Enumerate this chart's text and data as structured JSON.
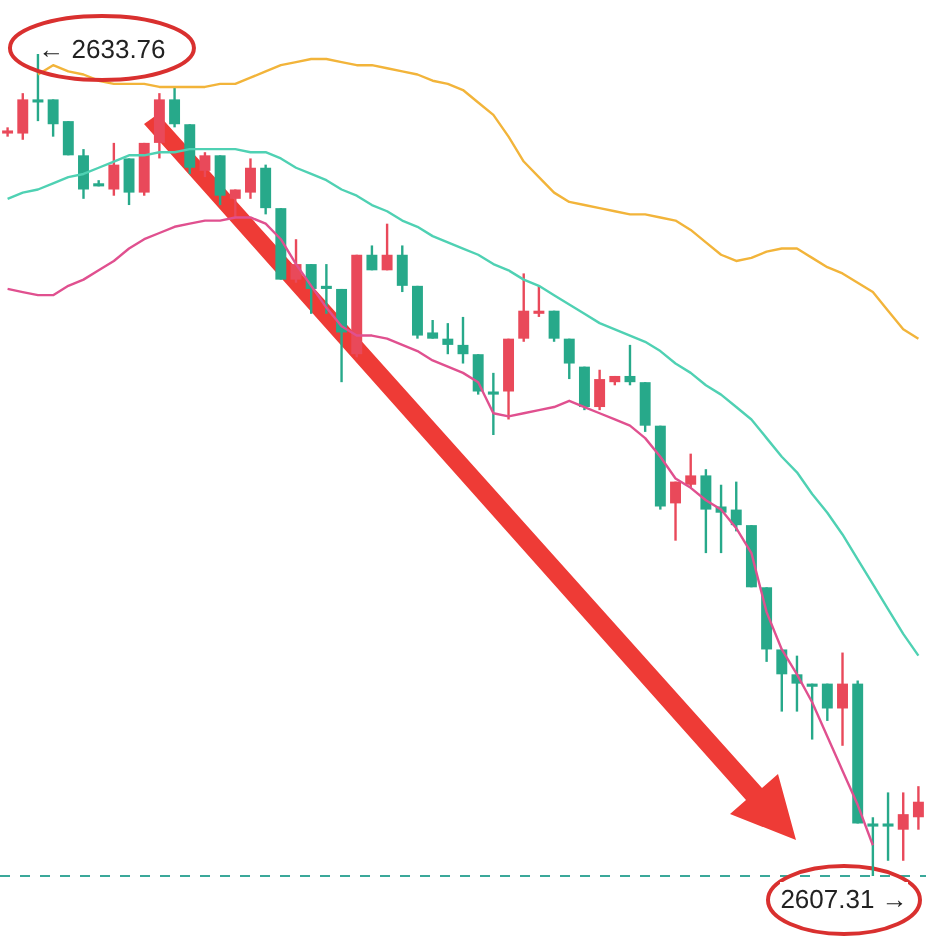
{
  "chart_data": {
    "type": "candlestick",
    "categories": [
      null,
      null,
      null,
      null,
      null,
      null,
      null,
      null,
      null,
      null,
      null,
      null,
      null,
      null,
      null,
      null,
      null,
      null,
      null,
      null,
      null,
      null,
      null,
      null,
      null,
      null,
      null,
      null,
      null,
      null,
      null,
      null,
      null,
      null,
      null,
      null,
      null,
      null,
      null,
      null,
      null,
      null,
      null,
      null,
      null,
      null,
      null,
      null,
      null,
      null,
      null,
      null,
      null,
      null,
      null,
      null,
      null,
      null,
      null,
      null,
      null
    ],
    "ohlc": [
      [
        2631.2,
        2631.4,
        2631.1,
        2631.3
      ],
      [
        2631.2,
        2632.5,
        2631.0,
        2632.3
      ],
      [
        2632.3,
        2633.76,
        2631.6,
        2632.2
      ],
      [
        2632.3,
        2632.3,
        2631.1,
        2631.5
      ],
      [
        2631.6,
        2631.6,
        2630.5,
        2630.5
      ],
      [
        2630.5,
        2630.7,
        2629.1,
        2629.4
      ],
      [
        2629.6,
        2629.7,
        2629.5,
        2629.5
      ],
      [
        2629.4,
        2630.9,
        2629.2,
        2630.2
      ],
      [
        2630.4,
        2630.4,
        2628.9,
        2629.3
      ],
      [
        2629.3,
        2630.9,
        2629.2,
        2630.9
      ],
      [
        2630.9,
        2632.5,
        2630.4,
        2632.3
      ],
      [
        2632.3,
        2632.7,
        2631.4,
        2631.5
      ],
      [
        2631.5,
        2631.5,
        2629.9,
        2630.1
      ],
      [
        2630.0,
        2630.6,
        2629.8,
        2630.5
      ],
      [
        2630.5,
        2630.5,
        2628.9,
        2629.2
      ],
      [
        2629.1,
        2629.4,
        2628.5,
        2629.4
      ],
      [
        2629.3,
        2630.4,
        2629.1,
        2630.1
      ],
      [
        2630.1,
        2630.2,
        2628.6,
        2628.8
      ],
      [
        2628.8,
        2628.8,
        2626.5,
        2626.5
      ],
      [
        2626.5,
        2627.8,
        2626.4,
        2627.0
      ],
      [
        2627.0,
        2627.0,
        2625.4,
        2626.2
      ],
      [
        2626.3,
        2627.0,
        2625.4,
        2626.2
      ],
      [
        2626.2,
        2626.2,
        2623.2,
        2624.8
      ],
      [
        2624.1,
        2627.3,
        2624.0,
        2627.3
      ],
      [
        2627.3,
        2627.6,
        2626.8,
        2626.8
      ],
      [
        2626.8,
        2628.3,
        2626.8,
        2627.3
      ],
      [
        2627.3,
        2627.6,
        2626.1,
        2626.3
      ],
      [
        2626.3,
        2626.3,
        2624.6,
        2624.7
      ],
      [
        2624.8,
        2625.2,
        2624.6,
        2624.6
      ],
      [
        2624.6,
        2625.1,
        2624.1,
        2624.4
      ],
      [
        2624.4,
        2625.3,
        2623.8,
        2624.1
      ],
      [
        2624.1,
        2624.1,
        2622.8,
        2622.9
      ],
      [
        2622.9,
        2623.5,
        2621.5,
        2622.8
      ],
      [
        2622.9,
        2624.6,
        2622.0,
        2624.6
      ],
      [
        2624.6,
        2626.7,
        2624.5,
        2625.5
      ],
      [
        2625.4,
        2626.3,
        2625.3,
        2625.5
      ],
      [
        2625.5,
        2625.5,
        2624.5,
        2624.6
      ],
      [
        2624.6,
        2624.6,
        2623.3,
        2623.8
      ],
      [
        2623.7,
        2623.7,
        2622.3,
        2622.4
      ],
      [
        2622.4,
        2623.6,
        2622.3,
        2623.3
      ],
      [
        2623.2,
        2623.4,
        2623.1,
        2623.4
      ],
      [
        2623.4,
        2624.4,
        2623.1,
        2623.2
      ],
      [
        2623.2,
        2623.2,
        2621.6,
        2621.8
      ],
      [
        2621.8,
        2621.8,
        2619.1,
        2619.2
      ],
      [
        2619.3,
        2620.0,
        2618.1,
        2620.0
      ],
      [
        2619.9,
        2620.9,
        2619.8,
        2620.2
      ],
      [
        2620.2,
        2620.4,
        2617.7,
        2619.1
      ],
      [
        2619.2,
        2619.9,
        2617.7,
        2619.0
      ],
      [
        2619.1,
        2620.0,
        2618.4,
        2618.6
      ],
      [
        2618.6,
        2618.6,
        2616.6,
        2616.6
      ],
      [
        2616.6,
        2616.6,
        2614.2,
        2614.6
      ],
      [
        2614.6,
        2614.6,
        2612.6,
        2613.8
      ],
      [
        2613.8,
        2614.4,
        2612.6,
        2613.5
      ],
      [
        2613.5,
        2613.5,
        2611.7,
        2613.4
      ],
      [
        2613.5,
        2613.5,
        2612.3,
        2612.7
      ],
      [
        2612.7,
        2614.5,
        2611.5,
        2613.5
      ],
      [
        2613.5,
        2613.6,
        2609.0,
        2609.0
      ],
      [
        2609.0,
        2609.2,
        2607.31,
        2608.9
      ],
      [
        2609.0,
        2610.0,
        2607.8,
        2608.9
      ],
      [
        2608.8,
        2610.0,
        2607.8,
        2609.3
      ],
      [
        2609.2,
        2610.2,
        2608.8,
        2609.7
      ]
    ],
    "colors": [
      "#e9495a",
      "#e9495a",
      "#27a98a",
      "#27a98a",
      "#27a98a",
      "#27a98a",
      "#27a98a",
      "#e9495a",
      "#27a98a",
      "#e9495a",
      "#e9495a",
      "#27a98a",
      "#27a98a",
      "#e9495a",
      "#27a98a",
      "#e9495a",
      "#e9495a",
      "#27a98a",
      "#27a98a",
      "#e9495a",
      "#27a98a",
      "#27a98a",
      "#27a98a",
      "#e9495a",
      "#27a98a",
      "#e9495a",
      "#27a98a",
      "#27a98a",
      "#27a98a",
      "#27a98a",
      "#27a98a",
      "#27a98a",
      "#27a98a",
      "#e9495a",
      "#e9495a",
      "#e9495a",
      "#27a98a",
      "#27a98a",
      "#27a98a",
      "#e9495a",
      "#e9495a",
      "#27a98a",
      "#27a98a",
      "#27a98a",
      "#e9495a",
      "#e9495a",
      "#27a98a",
      "#27a98a",
      "#27a98a",
      "#27a98a",
      "#27a98a",
      "#27a98a",
      "#27a98a",
      "#27a98a",
      "#27a98a",
      "#e9495a",
      "#27a98a",
      "#27a98a",
      "#27a98a",
      "#e9495a",
      "#e9495a"
    ],
    "series": [
      {
        "type": "line",
        "color": "#f2b43a",
        "values": [
          null,
          null,
          2633.1,
          2633.4,
          2633.2,
          2633.1,
          2632.9,
          2632.8,
          2632.8,
          2632.8,
          2632.7,
          2632.7,
          2632.7,
          2632.7,
          2632.8,
          2632.8,
          2633.0,
          2633.2,
          2633.4,
          2633.5,
          2633.6,
          2633.6,
          2633.5,
          2633.4,
          2633.4,
          2633.3,
          2633.2,
          2633.1,
          2632.9,
          2632.8,
          2632.6,
          2632.2,
          2631.8,
          2631.1,
          2630.3,
          2629.8,
          2629.3,
          2629.0,
          2628.9,
          2628.8,
          2628.7,
          2628.6,
          2628.6,
          2628.5,
          2628.4,
          2628.1,
          2627.7,
          2627.3,
          2627.1,
          2627.2,
          2627.4,
          2627.5,
          2627.5,
          2627.2,
          2626.9,
          2626.7,
          2626.4,
          2626.1,
          2625.5,
          2624.9,
          2624.6
        ]
      },
      {
        "type": "line",
        "color": "#4fd1b3",
        "values": [
          2629.1,
          2629.3,
          2629.4,
          2629.6,
          2629.8,
          2629.9,
          2630.1,
          2630.3,
          2630.5,
          2630.5,
          2630.6,
          2630.6,
          2630.7,
          2630.7,
          2630.7,
          2630.7,
          2630.6,
          2630.6,
          2630.4,
          2630.1,
          2629.9,
          2629.7,
          2629.4,
          2629.2,
          2628.9,
          2628.7,
          2628.4,
          2628.2,
          2627.9,
          2627.7,
          2627.5,
          2627.3,
          2627.0,
          2626.8,
          2626.5,
          2626.3,
          2626.0,
          2625.7,
          2625.4,
          2625.1,
          2624.9,
          2624.7,
          2624.5,
          2624.2,
          2623.8,
          2623.5,
          2623.1,
          2622.8,
          2622.4,
          2622.0,
          2621.4,
          2620.8,
          2620.3,
          2619.6,
          2619.0,
          2618.3,
          2617.5,
          2616.7,
          2615.9,
          2615.1,
          2614.4
        ]
      },
      {
        "type": "line",
        "color": "#e0508f",
        "values": [
          2626.2,
          2626.1,
          2626.0,
          2626.0,
          2626.3,
          2626.5,
          2626.8,
          2627.1,
          2627.5,
          2627.8,
          2628.0,
          2628.2,
          2628.3,
          2628.4,
          2628.4,
          2628.5,
          2628.5,
          2628.3,
          2627.8,
          2627.0,
          2626.3,
          2625.6,
          2625.0,
          2624.7,
          2624.7,
          2624.6,
          2624.4,
          2624.2,
          2623.9,
          2623.7,
          2623.5,
          2623.2,
          2622.2,
          2622.1,
          2622.2,
          2622.3,
          2622.4,
          2622.6,
          2622.4,
          2622.2,
          2622.0,
          2621.8,
          2621.4,
          2620.8,
          2620.1,
          2619.8,
          2619.4,
          2619.1,
          2618.5,
          2617.7,
          2615.8,
          2614.6,
          2613.8,
          2612.9,
          2611.8,
          2610.7,
          2609.6,
          2608.3,
          null,
          null,
          null
        ]
      }
    ],
    "annotations": [
      "← 2633.76"
    ],
    "ref_lines": [
      {
        "axis": "y",
        "value": 2607.31,
        "label": "2607.31 →",
        "color": "#3aa89a",
        "line_style": "dashed"
      }
    ]
  }
}
